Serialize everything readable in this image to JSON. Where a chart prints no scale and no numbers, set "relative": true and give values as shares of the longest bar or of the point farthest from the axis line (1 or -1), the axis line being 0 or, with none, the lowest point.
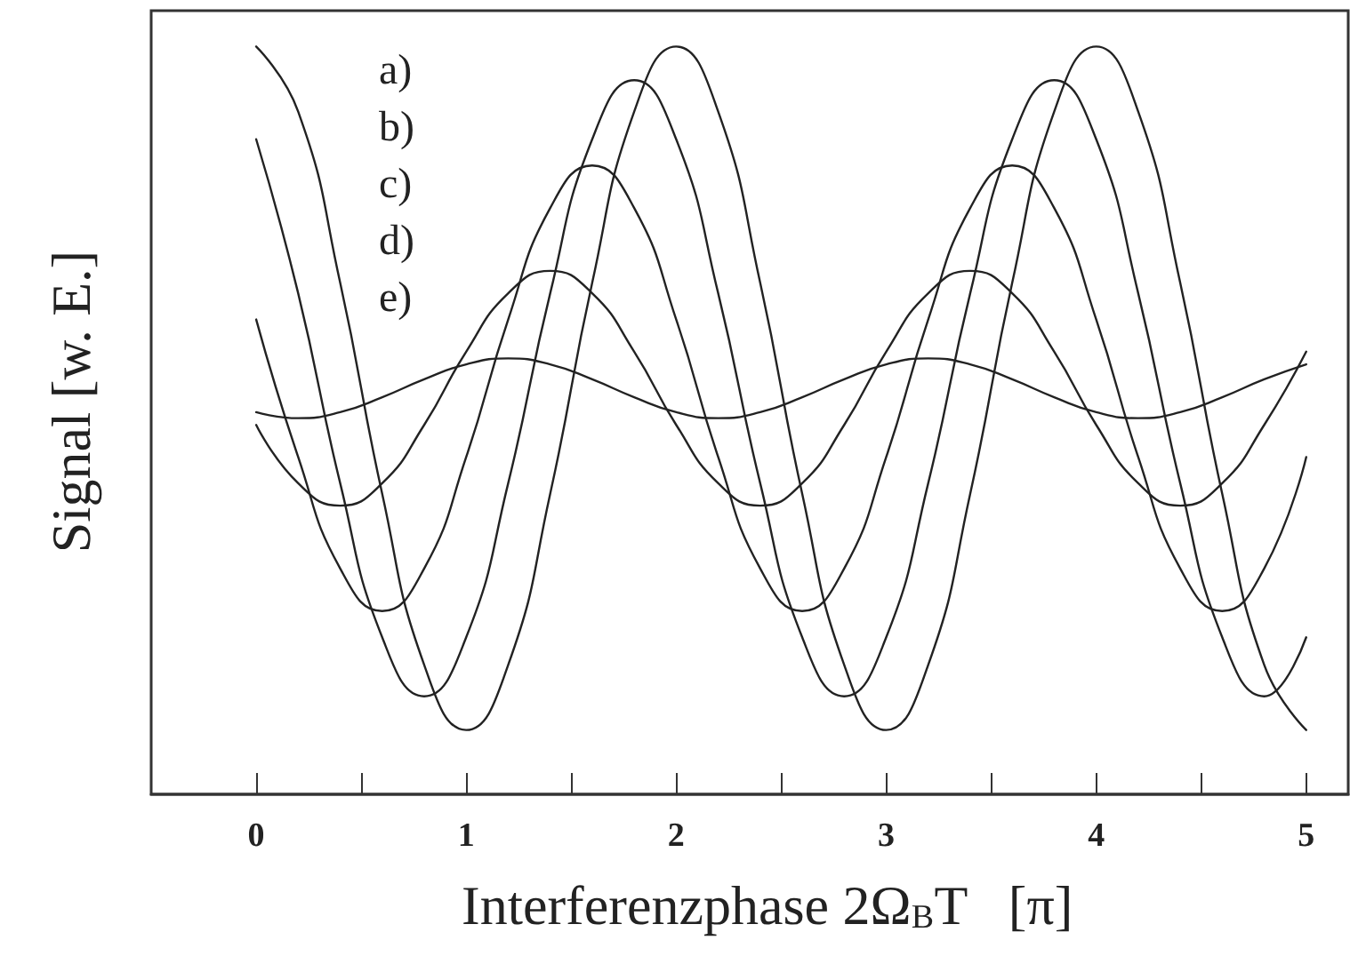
{
  "chart_data": {
    "type": "line",
    "relative": true,
    "xlabel": "Interferenzphase 2Ω$_{B}$T   [π]",
    "ylabel": "Signal [w. E.]",
    "annotations": [
      "a)",
      "b)",
      "c)",
      "d)",
      "e)"
    ],
    "x": [
      0,
      0.2,
      0.4,
      0.6,
      0.8,
      1,
      1.2,
      1.4,
      1.6,
      1.8,
      2,
      2.2,
      2.4,
      2.6,
      2.8,
      3,
      3.2,
      3.4,
      3.6,
      3.8,
      4,
      4.2,
      4.4,
      4.6,
      4.8,
      5
    ],
    "xlim": [
      -0.5,
      5.2
    ],
    "xticks": [
      0,
      {
        "value": 0.5,
        "label": null
      },
      1,
      {
        "value": 1.5,
        "label": null
      },
      2,
      {
        "value": 2.5,
        "label": null
      },
      3,
      {
        "value": 3.5,
        "label": null
      },
      4,
      {
        "value": 4.5,
        "label": null
      },
      5
    ],
    "tick_labels": "x",
    "grid": false,
    "marker": "none",
    "line_style": "solid",
    "series": [
      {
        "color": "#222222",
        "values": [
          1.0,
          0.913,
          0.684,
          0.402,
          0.173,
          0.086,
          0.173,
          0.402,
          0.684,
          0.913,
          1.0,
          0.913,
          0.684,
          0.402,
          0.173,
          0.086,
          0.173,
          0.402,
          0.684,
          0.913,
          1.0,
          0.913,
          0.684,
          0.402,
          0.173,
          0.086
        ]
      },
      {
        "color": "#222222",
        "values": [
          0.876,
          0.67,
          0.416,
          0.21,
          0.131,
          0.21,
          0.416,
          0.67,
          0.876,
          0.955,
          0.876,
          0.67,
          0.416,
          0.21,
          0.131,
          0.21,
          0.416,
          0.67,
          0.876,
          0.955,
          0.876,
          0.67,
          0.416,
          0.21,
          0.131,
          0.21
        ]
      },
      {
        "color": "#222222",
        "values": [
          0.635,
          0.451,
          0.302,
          0.245,
          0.302,
          0.451,
          0.635,
          0.784,
          0.841,
          0.784,
          0.635,
          0.451,
          0.302,
          0.245,
          0.302,
          0.451,
          0.635,
          0.784,
          0.841,
          0.784,
          0.635,
          0.451,
          0.302,
          0.245,
          0.302,
          0.451
        ]
      },
      {
        "color": "#222222",
        "values": [
          0.494,
          0.416,
          0.386,
          0.416,
          0.494,
          0.592,
          0.67,
          0.7,
          0.67,
          0.592,
          0.494,
          0.416,
          0.386,
          0.416,
          0.494,
          0.592,
          0.67,
          0.7,
          0.67,
          0.592,
          0.494,
          0.416,
          0.386,
          0.416,
          0.494,
          0.592
        ]
      },
      {
        "color": "#222222",
        "values": [
          0.511,
          0.503,
          0.511,
          0.531,
          0.555,
          0.575,
          0.583,
          0.575,
          0.555,
          0.531,
          0.511,
          0.503,
          0.511,
          0.531,
          0.555,
          0.575,
          0.583,
          0.575,
          0.555,
          0.531,
          0.511,
          0.503,
          0.511,
          0.531,
          0.555,
          0.575
        ]
      }
    ]
  }
}
